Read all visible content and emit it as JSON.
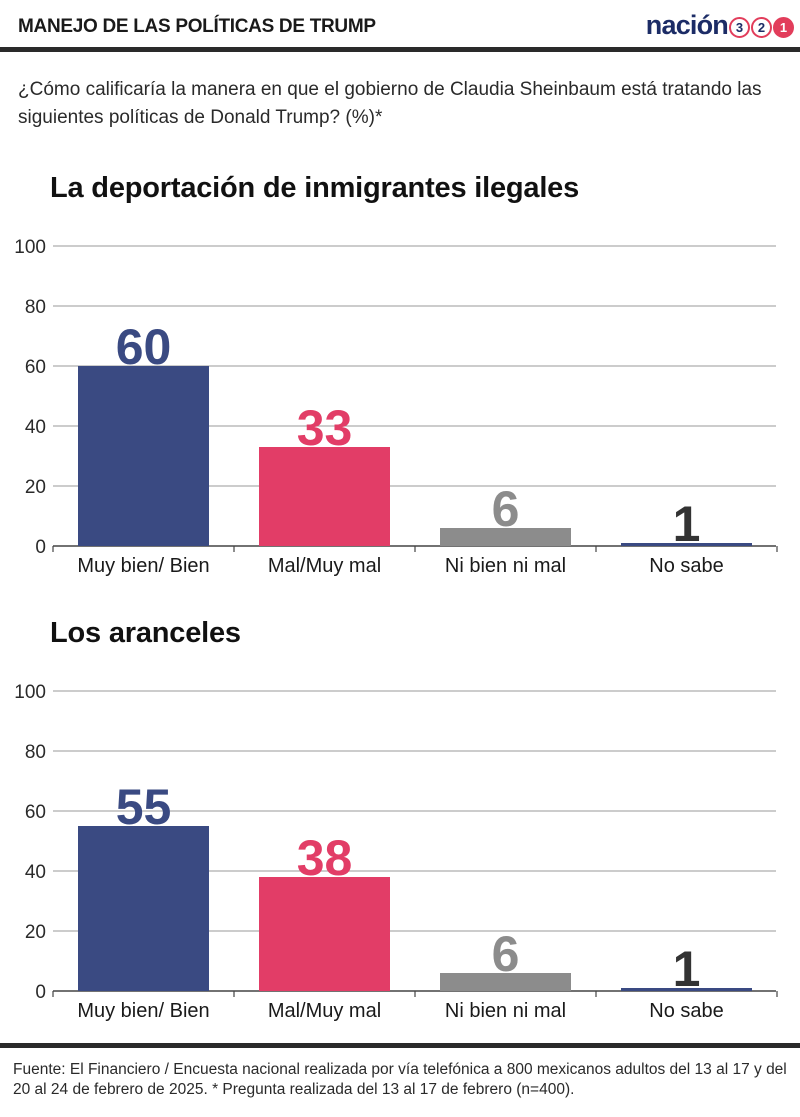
{
  "header": {
    "title": "MANEJO DE LAS POLÍTICAS DE TRUMP",
    "brand_word": "nación",
    "brand_digits": [
      "3",
      "2",
      "1"
    ]
  },
  "question": "¿Cómo calificaría la manera en que el gobierno de Claudia Sheinbaum está tratando las siguientes políticas de Donald Trump? (%)*",
  "chart_data": [
    {
      "type": "bar",
      "title": "La deportación de inmigrantes ilegales",
      "categories": [
        "Muy bien/ Bien",
        "Mal/Muy mal",
        "Ni bien ni mal",
        "No sabe"
      ],
      "values": [
        60,
        33,
        6,
        1
      ],
      "colors": [
        "#3a4a82",
        "#e23d67",
        "#8c8c8c",
        "#3a4a82"
      ],
      "label_colors": [
        "#3a4a82",
        "#e23d67",
        "#8c8c8c",
        "#333333"
      ],
      "ylim": [
        0,
        100
      ],
      "yticks": [
        0,
        20,
        40,
        60,
        80,
        100
      ],
      "grid": true
    },
    {
      "type": "bar",
      "title": "Los aranceles",
      "categories": [
        "Muy bien/ Bien",
        "Mal/Muy mal",
        "Ni bien ni mal",
        "No sabe"
      ],
      "values": [
        55,
        38,
        6,
        1
      ],
      "colors": [
        "#3a4a82",
        "#e23d67",
        "#8c8c8c",
        "#3a4a82"
      ],
      "label_colors": [
        "#3a4a82",
        "#e23d67",
        "#8c8c8c",
        "#333333"
      ],
      "ylim": [
        0,
        100
      ],
      "yticks": [
        0,
        20,
        40,
        60,
        80,
        100
      ],
      "grid": true
    }
  ],
  "footer": {
    "source": "Fuente: El Financiero / Encuesta nacional realizada por vía telefónica a 800 mexicanos adultos del 13 al 17 y del 20 al 24 de febrero de 2025. * Pregunta realizada del 13 al 17 de febrero (n=400)."
  }
}
